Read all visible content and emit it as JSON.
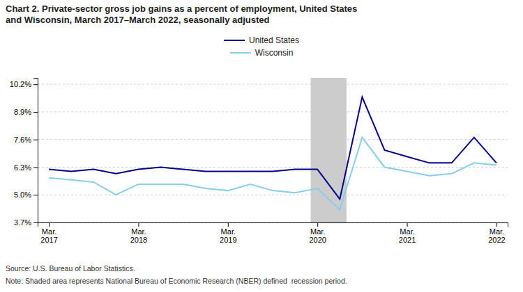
{
  "chart_data": {
    "type": "line",
    "title": "Chart 2. Private-sector gross job gains as a percent of employment, United States\nand Wisconsin, March 2017–March 2022, seasonally adjusted",
    "categories": [
      "Mar.\n2017",
      null,
      null,
      null,
      "Mar.\n2018",
      null,
      null,
      null,
      "Mar.\n2019",
      null,
      null,
      null,
      "Mar.\n2020",
      null,
      null,
      null,
      "Mar.\n2021",
      null,
      null,
      null,
      "Mar.\n2022"
    ],
    "series": [
      {
        "name": "United States",
        "color": "#00008B",
        "values": [
          6.2,
          6.1,
          6.2,
          6.0,
          6.2,
          6.3,
          6.2,
          6.1,
          6.1,
          6.1,
          6.1,
          6.2,
          6.2,
          4.8,
          9.6,
          7.1,
          6.8,
          6.5,
          6.5,
          7.7,
          6.5
        ]
      },
      {
        "name": "Wisconsin",
        "color": "#87CEEB",
        "values": [
          5.8,
          5.7,
          5.6,
          5.0,
          5.5,
          5.5,
          5.5,
          5.3,
          5.2,
          5.5,
          5.2,
          5.1,
          5.3,
          4.3,
          7.7,
          6.3,
          6.1,
          5.9,
          6.0,
          6.5,
          6.4
        ]
      }
    ],
    "xlim": [
      -0.5,
      20.5
    ],
    "ylim": [
      3.7,
      10.5
    ],
    "yticks": [
      {
        "value": 3.7,
        "label": "3.7%"
      },
      {
        "value": 5.0,
        "label": "5.0%"
      },
      {
        "value": 6.3,
        "label": "6.3%"
      },
      {
        "value": 7.6,
        "label": "7.6%"
      },
      {
        "value": 8.9,
        "label": "8.9%"
      },
      {
        "value": 10.2,
        "label": "10.2%"
      }
    ],
    "shaded_region": {
      "x": [
        11.7,
        13.3
      ],
      "color": "#cccccc"
    },
    "grid": true,
    "legend": "top",
    "source": "Source: U.S. Bureau of Labor Statistics.",
    "note": "Note: Shaded area represents National Bureau of Economic Research (NBER) defined  recession period."
  }
}
